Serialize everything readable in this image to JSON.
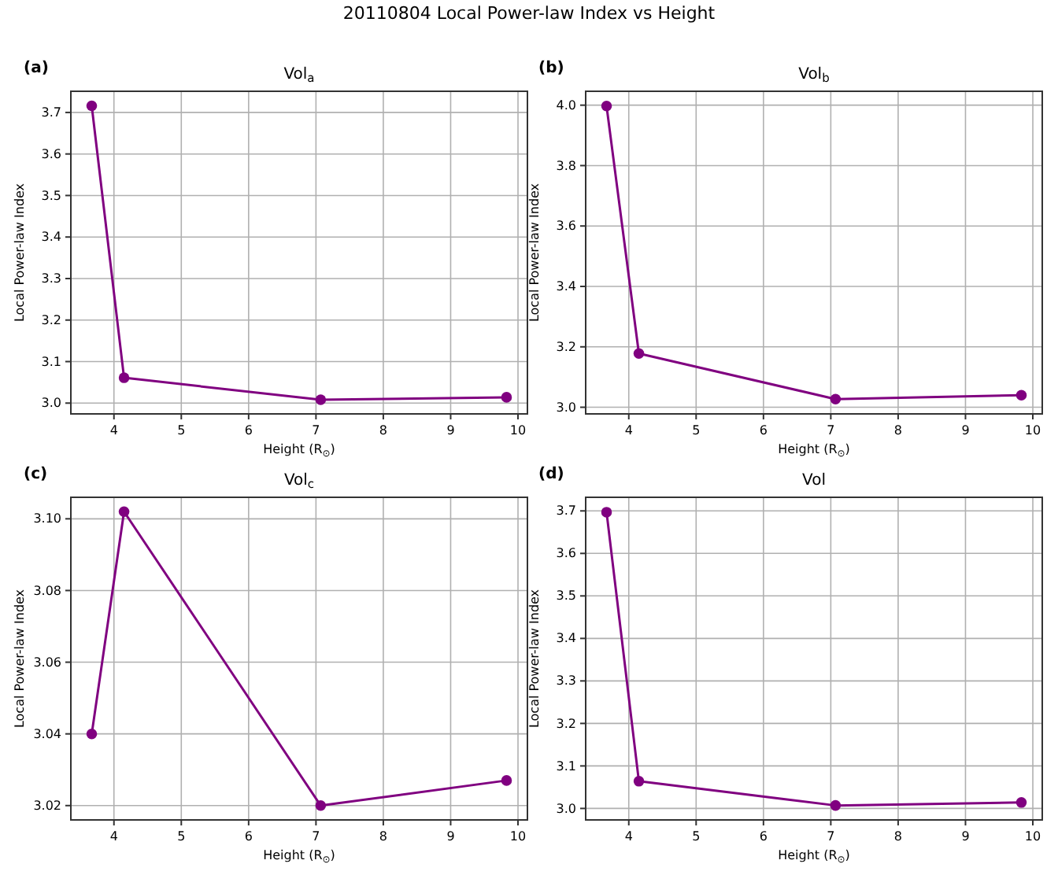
{
  "chart_data": [
    {
      "type": "line",
      "annotations": [
        "20110804 Local Power-law Index vs Height"
      ],
      "title": "(a)",
      "subtitle": "Vol$_{a}$",
      "xlabel": "Height (R$_{⊙}$)",
      "ylabel": "Local Power-law Index",
      "x": [
        3.67,
        4.15,
        7.07,
        9.83
      ],
      "series": [
        {
          "color": "#800080",
          "values": [
            3.716,
            3.061,
            3.008,
            3.014
          ]
        }
      ],
      "xlim": [
        3.36,
        10.14
      ],
      "xticks": [
        4,
        5,
        6,
        7,
        8,
        9,
        10
      ],
      "ylim": [
        2.974,
        3.751
      ],
      "yticks": [
        {
          "value": 3.0,
          "label": "3.0"
        },
        {
          "value": 3.1,
          "label": "3.1"
        },
        {
          "value": 3.2,
          "label": "3.2"
        },
        {
          "value": 3.3,
          "label": "3.3"
        },
        {
          "value": 3.4,
          "label": "3.4"
        },
        {
          "value": 3.5,
          "label": "3.5"
        },
        {
          "value": 3.6,
          "label": "3.6"
        },
        {
          "value": 3.7,
          "label": "3.7"
        }
      ],
      "grid": true,
      "marker": "circle"
    },
    {
      "type": "line",
      "title": "(b)",
      "subtitle": "Vol$_{b}$",
      "xlabel": "Height (R$_{⊙}$)",
      "ylabel": "Local Power-law Index",
      "x": [
        3.67,
        4.15,
        7.07,
        9.83
      ],
      "series": [
        {
          "color": "#800080",
          "values": [
            3.997,
            3.178,
            3.027,
            3.04
          ]
        }
      ],
      "xlim": [
        3.36,
        10.14
      ],
      "xticks": [
        4,
        5,
        6,
        7,
        8,
        9,
        10
      ],
      "ylim": [
        2.978,
        4.046
      ],
      "yticks": [
        {
          "value": 3.0,
          "label": "3.0"
        },
        {
          "value": 3.2,
          "label": "3.2"
        },
        {
          "value": 3.4,
          "label": "3.4"
        },
        {
          "value": 3.6,
          "label": "3.6"
        },
        {
          "value": 3.8,
          "label": "3.8"
        },
        {
          "value": 4.0,
          "label": "4.0"
        }
      ],
      "grid": true,
      "marker": "circle"
    },
    {
      "type": "line",
      "title": "(c)",
      "subtitle": "Vol$_{c}$",
      "xlabel": "Height (R$_{⊙}$)",
      "ylabel": "Local Power-law Index",
      "x": [
        3.67,
        4.15,
        7.07,
        9.83
      ],
      "series": [
        {
          "color": "#800080",
          "values": [
            3.04,
            3.102,
            3.02,
            3.027
          ]
        }
      ],
      "xlim": [
        3.36,
        10.14
      ],
      "xticks": [
        4,
        5,
        6,
        7,
        8,
        9,
        10
      ],
      "ylim": [
        3.016,
        3.106
      ],
      "yticks": [
        {
          "value": 3.02,
          "label": "3.02"
        },
        {
          "value": 3.04,
          "label": "3.04"
        },
        {
          "value": 3.06,
          "label": "3.06"
        },
        {
          "value": 3.08,
          "label": "3.08"
        },
        {
          "value": 3.1,
          "label": "3.10"
        }
      ],
      "grid": true,
      "marker": "circle"
    },
    {
      "type": "line",
      "title": "(d)",
      "subtitle": "Vol",
      "xlabel": "Height (R$_{⊙}$)",
      "ylabel": "Local Power-law Index",
      "x": [
        3.67,
        4.15,
        7.07,
        9.83
      ],
      "series": [
        {
          "color": "#800080",
          "values": [
            3.697,
            3.064,
            3.007,
            3.014
          ]
        }
      ],
      "xlim": [
        3.36,
        10.14
      ],
      "xticks": [
        4,
        5,
        6,
        7,
        8,
        9,
        10
      ],
      "ylim": [
        2.973,
        3.732
      ],
      "yticks": [
        {
          "value": 3.0,
          "label": "3.0"
        },
        {
          "value": 3.1,
          "label": "3.1"
        },
        {
          "value": 3.2,
          "label": "3.2"
        },
        {
          "value": 3.3,
          "label": "3.3"
        },
        {
          "value": 3.4,
          "label": "3.4"
        },
        {
          "value": 3.5,
          "label": "3.5"
        },
        {
          "value": 3.6,
          "label": "3.6"
        },
        {
          "value": 3.7,
          "label": "3.7"
        }
      ],
      "grid": true,
      "marker": "circle"
    }
  ]
}
